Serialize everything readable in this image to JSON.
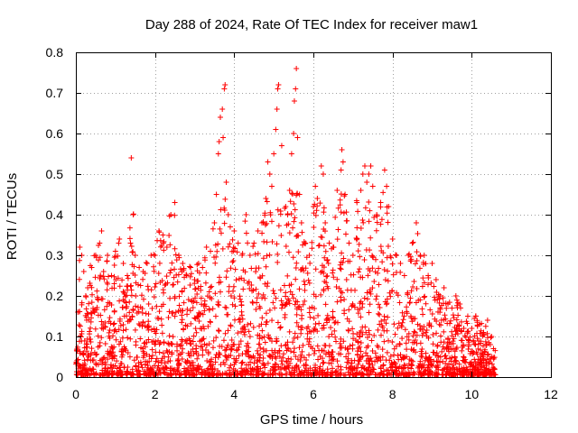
{
  "chart_data": {
    "type": "scatter",
    "title": "Day 288 of 2024, Rate Of TEC Index for receiver maw1",
    "xlabel": "GPS time / hours",
    "ylabel": "ROTI / TECUs",
    "xlim": [
      0,
      12
    ],
    "ylim": [
      0,
      0.8
    ],
    "xticks": [
      0,
      2,
      4,
      6,
      8,
      10,
      12
    ],
    "yticks": [
      0,
      0.1,
      0.2,
      0.3,
      0.4,
      0.5,
      0.6,
      0.7,
      0.8
    ],
    "xtick_labels": [
      "0",
      "2",
      "4",
      "6",
      "8",
      "10",
      "12"
    ],
    "ytick_labels": [
      "0",
      "0.1",
      "0.2",
      "0.3",
      "0.4",
      "0.5",
      "0.6",
      "0.7",
      "0.8"
    ],
    "grid": true,
    "marker": "+",
    "color": "#ff0000",
    "x_data_range": [
      0.0,
      10.6
    ],
    "points": [
      [
        0.05,
        0.16
      ],
      [
        0.1,
        0.32
      ],
      [
        0.15,
        0.3
      ],
      [
        0.2,
        0.26
      ],
      [
        0.25,
        0.2
      ],
      [
        0.3,
        0.22
      ],
      [
        0.4,
        0.27
      ],
      [
        0.5,
        0.3
      ],
      [
        0.6,
        0.33
      ],
      [
        0.65,
        0.36
      ],
      [
        0.7,
        0.26
      ],
      [
        0.8,
        0.3
      ],
      [
        0.9,
        0.25
      ],
      [
        1.0,
        0.31
      ],
      [
        1.1,
        0.34
      ],
      [
        1.2,
        0.28
      ],
      [
        1.3,
        0.25
      ],
      [
        1.4,
        0.54
      ],
      [
        1.45,
        0.4
      ],
      [
        1.5,
        0.3
      ],
      [
        1.6,
        0.27
      ],
      [
        1.7,
        0.26
      ],
      [
        1.8,
        0.28
      ],
      [
        1.9,
        0.3
      ],
      [
        2.0,
        0.3
      ],
      [
        2.1,
        0.36
      ],
      [
        2.2,
        0.35
      ],
      [
        2.3,
        0.32
      ],
      [
        2.4,
        0.4
      ],
      [
        2.5,
        0.43
      ],
      [
        2.6,
        0.3
      ],
      [
        2.7,
        0.28
      ],
      [
        2.8,
        0.25
      ],
      [
        2.9,
        0.27
      ],
      [
        3.0,
        0.24
      ],
      [
        3.1,
        0.28
      ],
      [
        3.2,
        0.27
      ],
      [
        3.3,
        0.32
      ],
      [
        3.4,
        0.31
      ],
      [
        3.5,
        0.38
      ],
      [
        3.55,
        0.45
      ],
      [
        3.6,
        0.55
      ],
      [
        3.62,
        0.58
      ],
      [
        3.65,
        0.64
      ],
      [
        3.7,
        0.66
      ],
      [
        3.72,
        0.59
      ],
      [
        3.75,
        0.71
      ],
      [
        3.77,
        0.72
      ],
      [
        3.8,
        0.48
      ],
      [
        3.85,
        0.4
      ],
      [
        3.9,
        0.37
      ],
      [
        4.0,
        0.36
      ],
      [
        4.1,
        0.33
      ],
      [
        4.2,
        0.3
      ],
      [
        4.3,
        0.4
      ],
      [
        4.4,
        0.3
      ],
      [
        4.5,
        0.33
      ],
      [
        4.6,
        0.36
      ],
      [
        4.7,
        0.38
      ],
      [
        4.8,
        0.44
      ],
      [
        4.85,
        0.53
      ],
      [
        4.9,
        0.5
      ],
      [
        4.95,
        0.47
      ],
      [
        5.0,
        0.55
      ],
      [
        5.05,
        0.61
      ],
      [
        5.08,
        0.66
      ],
      [
        5.1,
        0.71
      ],
      [
        5.12,
        0.72
      ],
      [
        5.2,
        0.57
      ],
      [
        5.3,
        0.42
      ],
      [
        5.35,
        0.4
      ],
      [
        5.4,
        0.46
      ],
      [
        5.45,
        0.55
      ],
      [
        5.5,
        0.6
      ],
      [
        5.52,
        0.68
      ],
      [
        5.55,
        0.71
      ],
      [
        5.57,
        0.76
      ],
      [
        5.6,
        0.59
      ],
      [
        5.65,
        0.45
      ],
      [
        5.7,
        0.38
      ],
      [
        5.8,
        0.33
      ],
      [
        5.9,
        0.3
      ],
      [
        6.0,
        0.42
      ],
      [
        6.05,
        0.47
      ],
      [
        6.1,
        0.44
      ],
      [
        6.2,
        0.52
      ],
      [
        6.25,
        0.5
      ],
      [
        6.3,
        0.38
      ],
      [
        6.4,
        0.33
      ],
      [
        6.5,
        0.32
      ],
      [
        6.6,
        0.46
      ],
      [
        6.7,
        0.51
      ],
      [
        6.72,
        0.56
      ],
      [
        6.75,
        0.53
      ],
      [
        6.8,
        0.45
      ],
      [
        6.9,
        0.33
      ],
      [
        7.0,
        0.3
      ],
      [
        7.1,
        0.43
      ],
      [
        7.2,
        0.46
      ],
      [
        7.25,
        0.5
      ],
      [
        7.3,
        0.52
      ],
      [
        7.35,
        0.48
      ],
      [
        7.4,
        0.5
      ],
      [
        7.45,
        0.52
      ],
      [
        7.5,
        0.47
      ],
      [
        7.6,
        0.4
      ],
      [
        7.7,
        0.43
      ],
      [
        7.8,
        0.51
      ],
      [
        7.85,
        0.47
      ],
      [
        7.9,
        0.42
      ],
      [
        8.0,
        0.34
      ],
      [
        8.1,
        0.3
      ],
      [
        8.2,
        0.28
      ],
      [
        8.3,
        0.25
      ],
      [
        8.4,
        0.3
      ],
      [
        8.5,
        0.33
      ],
      [
        8.6,
        0.38
      ],
      [
        8.7,
        0.3
      ],
      [
        8.8,
        0.3
      ],
      [
        8.9,
        0.25
      ],
      [
        9.0,
        0.28
      ],
      [
        9.1,
        0.24
      ],
      [
        9.2,
        0.2
      ],
      [
        9.3,
        0.22
      ],
      [
        9.4,
        0.18
      ],
      [
        9.5,
        0.17
      ],
      [
        9.6,
        0.2
      ],
      [
        9.7,
        0.18
      ],
      [
        9.8,
        0.12
      ],
      [
        9.9,
        0.15
      ],
      [
        10.0,
        0.12
      ],
      [
        10.1,
        0.15
      ],
      [
        10.2,
        0.13
      ],
      [
        10.3,
        0.11
      ],
      [
        10.4,
        0.14
      ],
      [
        10.5,
        0.1
      ],
      [
        10.55,
        0.07
      ]
    ]
  }
}
